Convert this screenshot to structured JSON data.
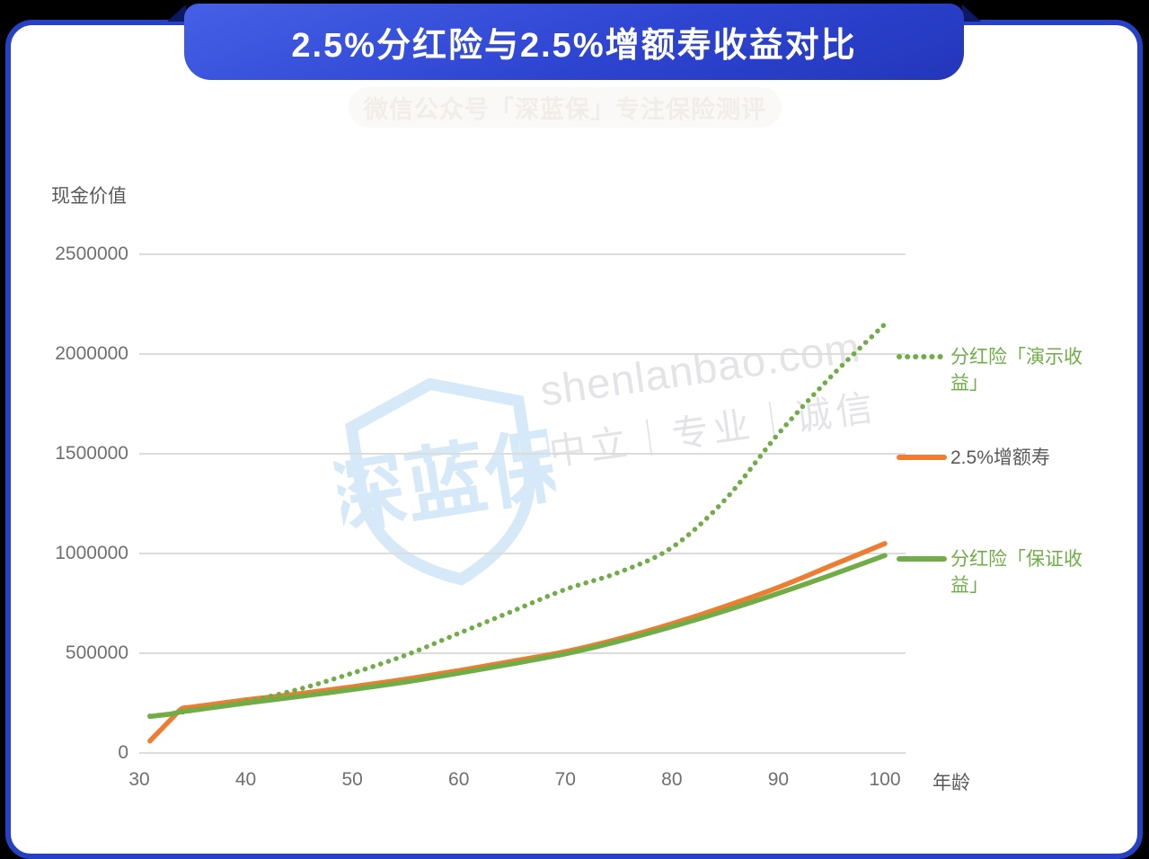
{
  "page": {
    "title": "2.5%分红险与2.5%增额寿收益对比",
    "subtitle_watermark": "微信公众号「深蓝保」专注保险测评"
  },
  "watermark": {
    "brand": "深蓝保",
    "site": "shenlanbao.com",
    "slogan": "中立｜专业｜诚信"
  },
  "colors": {
    "banner_blue_light": "#4560e6",
    "banner_blue_dark": "#2336bb",
    "card_border": "#2741c6",
    "fold_navy": "#0d1a63",
    "grid": "#dcdcdc",
    "tick_label": "#6f6f6f",
    "axis_title": "#595959",
    "series_green": "#70ad47",
    "series_orange": "#ed7d31",
    "watermark_gray": "#e4e4e8",
    "watermark_blue": "#d6e9f8"
  },
  "chart_data": {
    "type": "line",
    "title": "2.5%分红险与2.5%增额寿收益对比",
    "xlabel": "年龄",
    "ylabel": "现金价值",
    "xlim": [
      30,
      100
    ],
    "ylim": [
      0,
      2500000
    ],
    "xticks": [
      30,
      40,
      50,
      60,
      70,
      80,
      90,
      100
    ],
    "yticks": [
      0,
      500000,
      1000000,
      1500000,
      2000000,
      2500000
    ],
    "grid": "horizontal",
    "legend_position": "right",
    "x": [
      31,
      32,
      33,
      34,
      35,
      40,
      45,
      50,
      55,
      60,
      65,
      70,
      75,
      80,
      85,
      90,
      95,
      100
    ],
    "series": [
      {
        "name": "分红险「演示收益」",
        "style": "dotted",
        "color": "#70ad47",
        "label_color": "#70ad47",
        "values": [
          185000,
          190000,
          196000,
          204000,
          213000,
          258000,
          320000,
          400000,
          490000,
          600000,
          710000,
          820000,
          905000,
          1030000,
          1270000,
          1600000,
          1890000,
          2150000
        ]
      },
      {
        "name": "2.5%增额寿",
        "style": "solid",
        "color": "#ed7d31",
        "label_color": "#595959",
        "values": [
          60000,
          115000,
          170000,
          222000,
          230000,
          266000,
          297000,
          332000,
          370000,
          413000,
          460000,
          508000,
          572000,
          648000,
          735000,
          830000,
          940000,
          1050000
        ]
      },
      {
        "name": "分红险「保证收益」",
        "style": "solid",
        "color": "#70ad47",
        "label_color": "#70ad47",
        "values": [
          183000,
          189000,
          196000,
          207000,
          214000,
          250000,
          283000,
          318000,
          356000,
          400000,
          447000,
          497000,
          560000,
          633000,
          713000,
          800000,
          893000,
          990000
        ]
      }
    ]
  }
}
